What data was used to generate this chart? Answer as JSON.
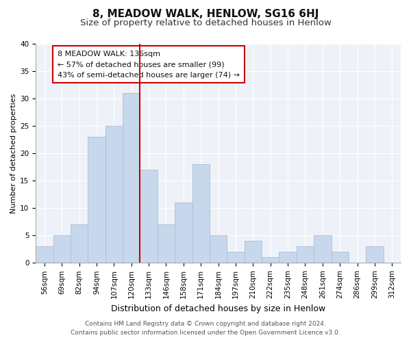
{
  "title": "8, MEADOW WALK, HENLOW, SG16 6HJ",
  "subtitle": "Size of property relative to detached houses in Henlow",
  "xlabel": "Distribution of detached houses by size in Henlow",
  "ylabel": "Number of detached properties",
  "bar_labels": [
    "56sqm",
    "69sqm",
    "82sqm",
    "94sqm",
    "107sqm",
    "120sqm",
    "133sqm",
    "146sqm",
    "158sqm",
    "171sqm",
    "184sqm",
    "197sqm",
    "210sqm",
    "222sqm",
    "235sqm",
    "248sqm",
    "261sqm",
    "274sqm",
    "286sqm",
    "299sqm",
    "312sqm"
  ],
  "bar_values": [
    3,
    5,
    7,
    23,
    25,
    31,
    17,
    7,
    11,
    18,
    5,
    2,
    4,
    1,
    2,
    3,
    5,
    2,
    0,
    3,
    0
  ],
  "bar_color": "#c8d8ec",
  "bar_edge_color": "#aabdd8",
  "vline_x_index": 6,
  "vline_color": "#cc0000",
  "ylim": [
    0,
    40
  ],
  "yticks": [
    0,
    5,
    10,
    15,
    20,
    25,
    30,
    35,
    40
  ],
  "annotation_box_text": "8 MEADOW WALK: 136sqm\n← 57% of detached houses are smaller (99)\n43% of semi-detached houses are larger (74) →",
  "annotation_box_color": "#ffffff",
  "annotation_box_edge_color": "#cc0000",
  "footer_line1": "Contains HM Land Registry data © Crown copyright and database right 2024.",
  "footer_line2": "Contains public sector information licensed under the Open Government Licence v3.0.",
  "title_fontsize": 11,
  "subtitle_fontsize": 9.5,
  "xlabel_fontsize": 9,
  "ylabel_fontsize": 8,
  "tick_fontsize": 7.5,
  "annotation_fontsize": 8,
  "footer_fontsize": 6.5,
  "background_color": "#ffffff",
  "plot_bg_color": "#eef2f8",
  "grid_color": "#ffffff"
}
